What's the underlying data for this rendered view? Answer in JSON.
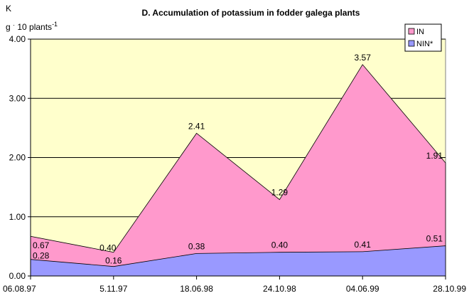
{
  "chart_data": {
    "type": "area",
    "title": "D. Accumulation of potassium in  fodder galega plants",
    "ylabel_line1": "K",
    "ylabel_line2_base": "g ",
    "ylabel_line2_dot": "·",
    "ylabel_line2_main": " 10 plants",
    "ylabel_line2_sup": "-1",
    "ylim": [
      0,
      4
    ],
    "yticks": [
      "0.00",
      "1.00",
      "2.00",
      "3.00",
      "4.00"
    ],
    "ytick_values": [
      0,
      1,
      2,
      3,
      4
    ],
    "categories": [
      "06.08.97",
      "5.11.97",
      "18.06.98",
      "24.10.98",
      "04.06.99",
      "28.10.99"
    ],
    "grid": true,
    "legend_position": "top-right",
    "series": [
      {
        "name": "IN",
        "color": "#ff99cc",
        "values": [
          0.67,
          0.4,
          2.41,
          1.29,
          3.57,
          1.91
        ],
        "labels": [
          "0.67",
          "0.40",
          "2.41",
          "1.29",
          "3.57",
          "1.91"
        ]
      },
      {
        "name": "NIN*",
        "color": "#9999ff",
        "values": [
          0.28,
          0.16,
          0.38,
          0.4,
          0.41,
          0.51
        ],
        "labels": [
          "0.28",
          "0.16",
          "0.38",
          "0.40",
          "0.41",
          "0.51"
        ]
      }
    ],
    "plot_background": "#ffffcc"
  }
}
